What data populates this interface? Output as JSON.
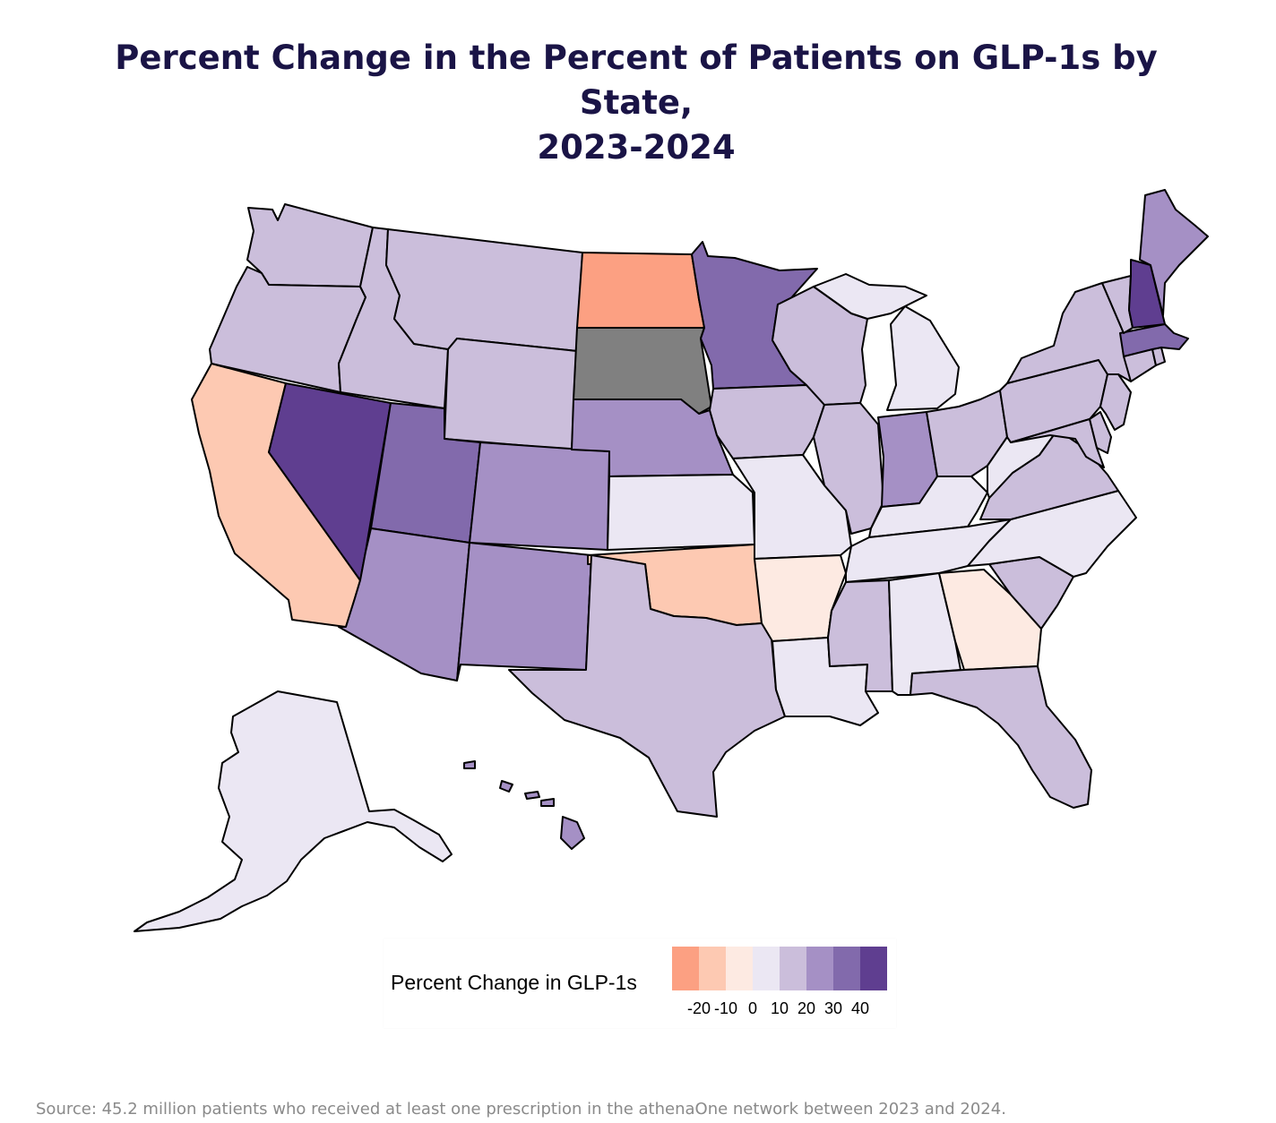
{
  "title": {
    "line1": "Percent Change in the Percent of Patients on GLP-1s by State,",
    "line2": "2023-2024"
  },
  "legend": {
    "title": "Percent Change in GLP-1s",
    "bins": [
      {
        "range": "-30 to -20",
        "color": "#fca082"
      },
      {
        "range": "-20 to -10",
        "color": "#fdc9b2"
      },
      {
        "range": "-10 to 0",
        "color": "#fdeae2"
      },
      {
        "range": "0 to 10",
        "color": "#ebe7f3"
      },
      {
        "range": "10 to 20",
        "color": "#cbbedb"
      },
      {
        "range": "20 to 30",
        "color": "#a590c5"
      },
      {
        "range": "30 to 40",
        "color": "#826aac"
      },
      {
        "range": "40 to 50",
        "color": "#5f3e90"
      }
    ],
    "ticks": [
      "-20",
      "-10",
      "0",
      "10",
      "20",
      "30",
      "40"
    ]
  },
  "no_data_color": "#808080",
  "chart_data": {
    "type": "choropleth",
    "unit": "percent change",
    "states": [
      {
        "state": "Washington",
        "bin": "10 to 20"
      },
      {
        "state": "Oregon",
        "bin": "10 to 20"
      },
      {
        "state": "California",
        "bin": "-20 to -10"
      },
      {
        "state": "Nevada",
        "bin": "40 to 50"
      },
      {
        "state": "Idaho",
        "bin": "10 to 20"
      },
      {
        "state": "Montana",
        "bin": "10 to 20"
      },
      {
        "state": "Wyoming",
        "bin": "10 to 20"
      },
      {
        "state": "Utah",
        "bin": "30 to 40"
      },
      {
        "state": "Arizona",
        "bin": "20 to 30"
      },
      {
        "state": "Colorado",
        "bin": "20 to 30"
      },
      {
        "state": "New Mexico",
        "bin": "20 to 30"
      },
      {
        "state": "North Dakota",
        "bin": "-30 to -20"
      },
      {
        "state": "South Dakota",
        "bin": "no data"
      },
      {
        "state": "Nebraska",
        "bin": "20 to 30"
      },
      {
        "state": "Kansas",
        "bin": "0 to 10"
      },
      {
        "state": "Oklahoma",
        "bin": "-20 to -10"
      },
      {
        "state": "Texas",
        "bin": "10 to 20"
      },
      {
        "state": "Minnesota",
        "bin": "30 to 40"
      },
      {
        "state": "Iowa",
        "bin": "10 to 20"
      },
      {
        "state": "Missouri",
        "bin": "0 to 10"
      },
      {
        "state": "Arkansas",
        "bin": "-10 to 0"
      },
      {
        "state": "Louisiana",
        "bin": "0 to 10"
      },
      {
        "state": "Wisconsin",
        "bin": "10 to 20"
      },
      {
        "state": "Illinois",
        "bin": "10 to 20"
      },
      {
        "state": "Michigan",
        "bin": "0 to 10"
      },
      {
        "state": "Indiana",
        "bin": "20 to 30"
      },
      {
        "state": "Ohio",
        "bin": "10 to 20"
      },
      {
        "state": "Kentucky",
        "bin": "0 to 10"
      },
      {
        "state": "Tennessee",
        "bin": "0 to 10"
      },
      {
        "state": "Mississippi",
        "bin": "10 to 20"
      },
      {
        "state": "Alabama",
        "bin": "0 to 10"
      },
      {
        "state": "Georgia",
        "bin": "-10 to 0"
      },
      {
        "state": "Florida",
        "bin": "10 to 20"
      },
      {
        "state": "South Carolina",
        "bin": "10 to 20"
      },
      {
        "state": "North Carolina",
        "bin": "0 to 10"
      },
      {
        "state": "Virginia",
        "bin": "10 to 20"
      },
      {
        "state": "West Virginia",
        "bin": "0 to 10"
      },
      {
        "state": "Pennsylvania",
        "bin": "10 to 20"
      },
      {
        "state": "New York",
        "bin": "10 to 20"
      },
      {
        "state": "New Jersey",
        "bin": "10 to 20"
      },
      {
        "state": "Maryland",
        "bin": "10 to 20"
      },
      {
        "state": "Delaware",
        "bin": "10 to 20"
      },
      {
        "state": "Connecticut",
        "bin": "10 to 20"
      },
      {
        "state": "Rhode Island",
        "bin": "10 to 20"
      },
      {
        "state": "Massachusetts",
        "bin": "30 to 40"
      },
      {
        "state": "Vermont",
        "bin": "10 to 20"
      },
      {
        "state": "New Hampshire",
        "bin": "40 to 50"
      },
      {
        "state": "Maine",
        "bin": "20 to 30"
      },
      {
        "state": "Alaska",
        "bin": "0 to 10"
      },
      {
        "state": "Hawaii",
        "bin": "20 to 30"
      }
    ]
  },
  "source": "Source: 45.2 million patients who received at least one prescription in the athenaOne network between 2023 and 2024."
}
